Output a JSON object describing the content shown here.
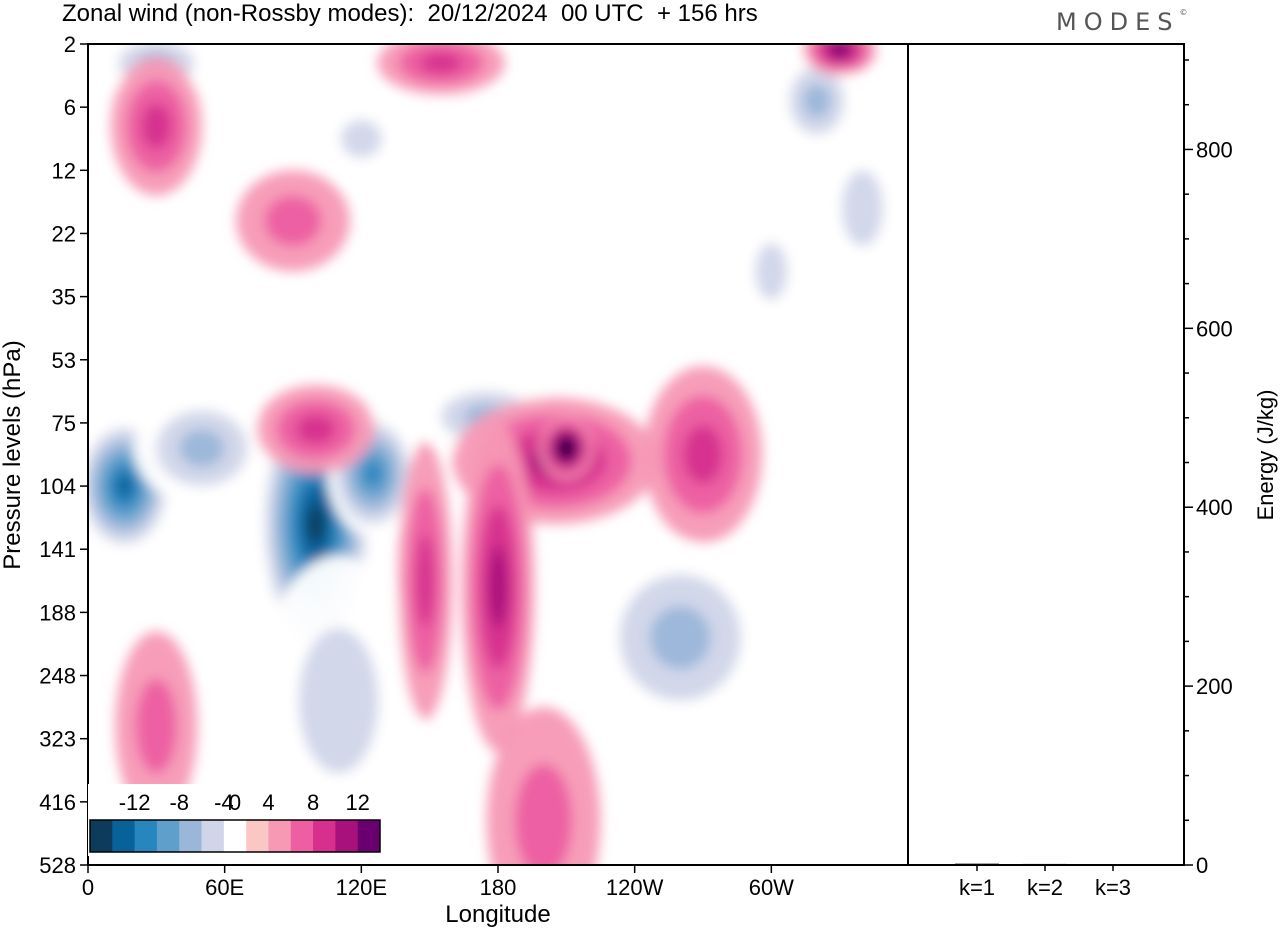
{
  "header": {
    "title": "Zonal wind (non-Rossby modes):  20/12/2024  00 UTC  + 156 hrs",
    "logo": "MODES",
    "logo_mark": "©"
  },
  "chart_data": [
    {
      "type": "heatmap",
      "title": "Zonal wind (non-Rossby modes):  20/12/2024  00 UTC  + 156 hrs",
      "xlabel": "Longitude",
      "ylabel": "Pressure levels (hPa)",
      "x_ticks": [
        "0",
        "60E",
        "120E",
        "180",
        "120W",
        "60W"
      ],
      "x_tick_degrees": [
        0,
        60,
        120,
        180,
        240,
        300
      ],
      "xlim": [
        0,
        360
      ],
      "y_ticks": [
        "2",
        "6",
        "12",
        "22",
        "35",
        "53",
        "75",
        "104",
        "141",
        "188",
        "248",
        "323",
        "416",
        "528"
      ],
      "colorbar": {
        "tick_labels": [
          "-12",
          "-8",
          "-4",
          "0",
          "4",
          "8",
          "12"
        ],
        "levels": [
          -14,
          -12,
          -10,
          -8,
          -6,
          -4,
          -2,
          2,
          4,
          6,
          8,
          10,
          12,
          14
        ],
        "colors": [
          "#0d3b5c",
          "#08629a",
          "#2886bf",
          "#5f9fcc",
          "#9ab6d9",
          "#d0d5e9",
          "#ffffff",
          "#fbc7c5",
          "#f798b5",
          "#ed5fa2",
          "#d62f8e",
          "#a8107c",
          "#6a0070"
        ]
      },
      "regions": [
        {
          "kind": "neg",
          "lon": 16,
          "level": 100,
          "level_index": 7.0,
          "rx": 22,
          "ry": 1.1,
          "value": -11
        },
        {
          "kind": "neg",
          "lon": 50,
          "level": 80,
          "level_index": 6.4,
          "rx": 30,
          "ry": 0.9,
          "value": -5
        },
        {
          "kind": "neg",
          "lon": 100,
          "level": 120,
          "level_index": 7.6,
          "rx": 26,
          "ry": 2.2,
          "value": -14
        },
        {
          "kind": "neg",
          "lon": 125,
          "level": 95,
          "level_index": 6.8,
          "rx": 20,
          "ry": 1.0,
          "value": -10
        },
        {
          "kind": "neg",
          "lon": 175,
          "level": 70,
          "level_index": 5.9,
          "rx": 30,
          "ry": 0.6,
          "value": -5
        },
        {
          "kind": "neg",
          "lon": 260,
          "level": 200,
          "level_index": 9.4,
          "rx": 40,
          "ry": 1.5,
          "value": -5
        },
        {
          "kind": "neg",
          "lon": 110,
          "level": 260,
          "level_index": 10.4,
          "rx": 35,
          "ry": 2.3,
          "value": -3
        },
        {
          "kind": "neg",
          "lon": 30,
          "level": 2,
          "level_index": 0.3,
          "rx": 25,
          "ry": 0.5,
          "value": -5
        },
        {
          "kind": "neg",
          "lon": 320,
          "level": 6,
          "level_index": 0.9,
          "rx": 18,
          "ry": 0.8,
          "value": -6
        },
        {
          "kind": "neg",
          "lon": 340,
          "level": 20,
          "level_index": 2.6,
          "rx": 18,
          "ry": 1.2,
          "value": -4
        },
        {
          "kind": "neg",
          "lon": 300,
          "level": 30,
          "level_index": 3.6,
          "rx": 14,
          "ry": 0.9,
          "value": -3
        },
        {
          "kind": "neg",
          "lon": 120,
          "level": 8,
          "level_index": 1.5,
          "rx": 18,
          "ry": 0.6,
          "value": -3
        },
        {
          "kind": "pos",
          "lon": 205,
          "level": 90,
          "level_index": 6.6,
          "rx": 45,
          "ry": 1.0,
          "value": 8
        },
        {
          "kind": "pos",
          "lon": 210,
          "level": 88,
          "level_index": 6.4,
          "rx": 12,
          "ry": 0.5,
          "value": 13
        },
        {
          "kind": "pos",
          "lon": 180,
          "level": 160,
          "level_index": 8.6,
          "rx": 16,
          "ry": 2.6,
          "value": 7
        },
        {
          "kind": "pos",
          "lon": 148,
          "level": 160,
          "level_index": 8.5,
          "rx": 12,
          "ry": 2.2,
          "value": 5
        },
        {
          "kind": "pos",
          "lon": 100,
          "level": 70,
          "level_index": 6.1,
          "rx": 26,
          "ry": 0.7,
          "value": 5
        },
        {
          "kind": "pos",
          "lon": 200,
          "level": 500,
          "level_index": 12.3,
          "rx": 25,
          "ry": 1.8,
          "value": 3
        },
        {
          "kind": "pos",
          "lon": 270,
          "level": 88,
          "level_index": 6.5,
          "rx": 26,
          "ry": 1.4,
          "value": 5
        },
        {
          "kind": "pos",
          "lon": 30,
          "level": 7,
          "level_index": 1.3,
          "rx": 20,
          "ry": 1.1,
          "value": 6
        },
        {
          "kind": "pos",
          "lon": 155,
          "level": 2,
          "level_index": 0.3,
          "rx": 28,
          "ry": 0.5,
          "value": 5
        },
        {
          "kind": "pos",
          "lon": 330,
          "level": 2,
          "level_index": 0.1,
          "rx": 16,
          "ry": 0.4,
          "value": 9
        },
        {
          "kind": "pos",
          "lon": 90,
          "level": 18,
          "level_index": 2.8,
          "rx": 25,
          "ry": 0.8,
          "value": 3
        },
        {
          "kind": "pos",
          "lon": 30,
          "level": 300,
          "level_index": 10.8,
          "rx": 18,
          "ry": 1.5,
          "value": 3
        }
      ]
    },
    {
      "type": "bar",
      "categories": [
        "k=1",
        "k=2",
        "k=3"
      ],
      "values": [
        1.5,
        1.2,
        1.0
      ],
      "ylabel": "Energy (J/kg)",
      "ylim": [
        0,
        900
      ],
      "y_ticks": [
        0,
        200,
        400,
        600,
        800
      ]
    }
  ]
}
